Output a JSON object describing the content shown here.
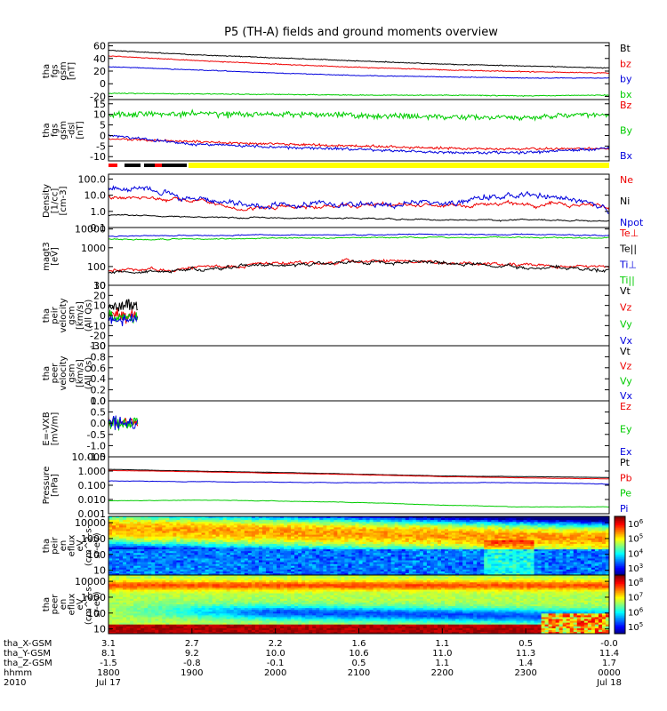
{
  "title": "P5 (TH-A) fields and ground moments overview",
  "chart_data": [
    {
      "id": "fgs_gsm",
      "type": "line",
      "ylabel": [
        "tha",
        "fgs",
        "gsm",
        "[nT]"
      ],
      "yticks": [
        60,
        40,
        20,
        0,
        -20
      ],
      "ylim": [
        -25,
        65
      ],
      "series": [
        {
          "name": "Bt",
          "color": "#000000",
          "noise": 0.6,
          "x": [
            0,
            1,
            2,
            3,
            4,
            5,
            6
          ],
          "y": [
            53,
            46,
            41,
            36,
            31,
            28,
            25
          ]
        },
        {
          "name": "bz",
          "color": "#ee0000",
          "noise": 0.6,
          "x": [
            0,
            1,
            2,
            3,
            4,
            5,
            6
          ],
          "y": [
            44,
            37,
            31,
            26,
            22,
            19,
            17
          ]
        },
        {
          "name": "by",
          "color": "#0000dd",
          "noise": 0.5,
          "x": [
            0,
            1,
            2,
            3,
            4,
            5,
            6
          ],
          "y": [
            27,
            22,
            17,
            13,
            11,
            9,
            9
          ]
        },
        {
          "name": "bx",
          "color": "#00cc00",
          "noise": 0.6,
          "x": [
            0,
            1,
            2,
            3,
            4,
            5,
            6
          ],
          "y": [
            -15,
            -16,
            -17,
            -18,
            -18,
            -19,
            -18
          ]
        }
      ]
    },
    {
      "id": "fgs_dsl",
      "type": "line",
      "ylabel": [
        "tha",
        "fgs",
        "gsm",
        "-dsl",
        "[nT]"
      ],
      "yticks": [
        15,
        10,
        5,
        0,
        -5,
        -10
      ],
      "ylim": [
        -12,
        17
      ],
      "series": [
        {
          "name": "Bz",
          "color": "#ee0000",
          "noise": 0.5,
          "x": [
            0,
            1,
            2,
            3,
            4,
            5,
            6
          ],
          "y": [
            -1.5,
            -3,
            -4,
            -5,
            -6,
            -6.5,
            -6
          ]
        },
        {
          "name": "By",
          "color": "#00cc00",
          "noise": 1.2,
          "x": [
            0,
            1,
            2,
            3,
            4,
            5,
            6
          ],
          "y": [
            10,
            10.5,
            10,
            9.5,
            9,
            8.5,
            10
          ]
        },
        {
          "name": "Bx",
          "color": "#0000dd",
          "noise": 0.6,
          "x": [
            0,
            1,
            2,
            3,
            4,
            5,
            6
          ],
          "y": [
            0,
            -4,
            -5.5,
            -6.5,
            -8,
            -8,
            -6
          ]
        }
      ]
    },
    {
      "id": "density",
      "type": "line",
      "log": true,
      "ylabel": [
        "Density",
        "[1/cc]",
        "[cm-3]"
      ],
      "yticks": [
        100,
        10,
        1,
        0.1
      ],
      "tick_labels": [
        "100.0",
        "10.0",
        "1.0",
        "0.1"
      ],
      "ylim": [
        0.1,
        200
      ],
      "series": [
        {
          "name": "Ne",
          "color": "#ee0000",
          "noise": 0.15,
          "x": [
            0,
            0.8,
            1.5,
            2.5,
            3.5,
            4.5,
            5.3,
            5.8,
            6
          ],
          "y": [
            8,
            6,
            1.5,
            2,
            2.5,
            2.5,
            3,
            2.5,
            1
          ]
        },
        {
          "name": "Ni",
          "color": "#000000",
          "noise": 0.05,
          "x": [
            0,
            1,
            2,
            3,
            4,
            5,
            6
          ],
          "y": [
            0.6,
            0.45,
            0.4,
            0.35,
            0.3,
            0.3,
            0.25
          ]
        },
        {
          "name": "Npot",
          "color": "#0000dd",
          "noise": 0.25,
          "x": [
            0,
            0.5,
            0.8,
            1.2,
            2,
            3,
            4,
            4.5,
            5,
            5.8,
            6
          ],
          "y": [
            30,
            20,
            10,
            4,
            2,
            3,
            4,
            6,
            9,
            2,
            0.6
          ]
        }
      ]
    },
    {
      "id": "temperature",
      "type": "line",
      "log": true,
      "ylabel": [
        "magt3",
        "[eV]"
      ],
      "yticks": [
        10000,
        1000,
        100,
        10
      ],
      "tick_labels": [
        "10000",
        "1000",
        "100",
        "10"
      ],
      "ylim": [
        10,
        12000
      ],
      "series": [
        {
          "name": "Te⊥",
          "color": "#ee0000",
          "noise": 0.12,
          "x": [
            0,
            1,
            2,
            3,
            4,
            5,
            6
          ],
          "y": [
            60,
            80,
            140,
            200,
            170,
            110,
            90
          ]
        },
        {
          "name": "Te||",
          "color": "#000000",
          "noise": 0.12,
          "x": [
            0,
            1,
            2,
            3,
            4,
            5,
            6
          ],
          "y": [
            50,
            70,
            120,
            170,
            150,
            80,
            70
          ]
        },
        {
          "name": "Ti⊥",
          "color": "#0000dd",
          "noise": 0.03,
          "x": [
            0,
            1,
            2,
            3,
            4,
            5,
            6
          ],
          "y": [
            4200,
            4500,
            4800,
            5000,
            5100,
            5000,
            4600
          ]
        },
        {
          "name": "Ti||",
          "color": "#00cc00",
          "noise": 0.04,
          "x": [
            0,
            1,
            2,
            3,
            4,
            5,
            6
          ],
          "y": [
            2800,
            3000,
            3200,
            3500,
            3600,
            3500,
            3400
          ]
        }
      ]
    },
    {
      "id": "peir_velocity",
      "type": "line",
      "ylabel": [
        "tha",
        "peir",
        "velocity",
        "gsm",
        "[km/s]",
        "(All Qs)"
      ],
      "yticks": [
        30,
        20,
        10,
        0,
        -10,
        -20,
        -30
      ],
      "ylim": [
        -30,
        30
      ],
      "series": [
        {
          "name": "Vt",
          "color": "#000000",
          "noise": 6,
          "x": [
            0,
            0.35
          ],
          "y": [
            10,
            10
          ]
        },
        {
          "name": "Vz",
          "color": "#ee0000",
          "noise": 5,
          "x": [
            0,
            0.35
          ],
          "y": [
            0,
            0
          ]
        },
        {
          "name": "Vy",
          "color": "#00cc00",
          "noise": 5,
          "x": [
            0,
            0.35
          ],
          "y": [
            -2,
            -2
          ]
        },
        {
          "name": "Vx",
          "color": "#0000dd",
          "noise": 5,
          "x": [
            0,
            0.35
          ],
          "y": [
            -4,
            -4
          ]
        }
      ]
    },
    {
      "id": "peer_velocity",
      "type": "line",
      "ylabel": [
        "tha",
        "peer",
        "velocity",
        "gsm",
        "[km/s]",
        "(All Qs)"
      ],
      "yticks": [
        1,
        0.8,
        0.6,
        0.4,
        0.2,
        0
      ],
      "tick_labels": [
        "1.0",
        "0.8",
        "0.6",
        "0.4",
        "0.2",
        "0.0"
      ],
      "ylim": [
        0,
        1
      ],
      "series": [
        {
          "name": "Vt",
          "color": "#000000"
        },
        {
          "name": "Vz",
          "color": "#ee0000"
        },
        {
          "name": "Vy",
          "color": "#00cc00"
        },
        {
          "name": "Vx",
          "color": "#0000dd"
        }
      ]
    },
    {
      "id": "efield",
      "type": "line",
      "ylabel": [
        "E=-VXB",
        "[mV/m]"
      ],
      "yticks": [
        1,
        0.5,
        0,
        -0.5,
        -1,
        -1.5
      ],
      "tick_labels": [
        "1.0",
        "0.5",
        "0.0",
        "-0.5",
        "-1.0",
        "-1.5"
      ],
      "ylim": [
        -1.5,
        1
      ],
      "series": [
        {
          "name": "Ez",
          "color": "#ee0000",
          "noise": 0.2,
          "x": [
            0,
            0.35
          ],
          "y": [
            0.05,
            0.05
          ]
        },
        {
          "name": "Ey",
          "color": "#00cc00",
          "noise": 0.3,
          "x": [
            0,
            0.35
          ],
          "y": [
            0,
            0
          ]
        },
        {
          "name": "Ex",
          "color": "#0000dd",
          "noise": 0.25,
          "x": [
            0,
            0.35
          ],
          "y": [
            0.1,
            0.1
          ]
        }
      ]
    },
    {
      "id": "pressure",
      "type": "line",
      "log": true,
      "ylabel": [
        "Pressure",
        "[nPa]"
      ],
      "yticks": [
        10,
        1,
        0.1,
        0.01,
        0.001
      ],
      "tick_labels": [
        "10.000",
        "1.000",
        "0.100",
        "0.010",
        "0.001"
      ],
      "ylim": [
        0.001,
        10
      ],
      "series": [
        {
          "name": "Pt",
          "color": "#000000",
          "noise": 0.01,
          "x": [
            0,
            1,
            2,
            3,
            4,
            5,
            6
          ],
          "y": [
            1.3,
            1.0,
            0.8,
            0.6,
            0.45,
            0.4,
            0.35
          ]
        },
        {
          "name": "Pb",
          "color": "#ee0000",
          "noise": 0.01,
          "x": [
            0,
            1,
            2,
            3,
            4,
            5,
            6
          ],
          "y": [
            1.1,
            0.9,
            0.7,
            0.55,
            0.4,
            0.33,
            0.28
          ]
        },
        {
          "name": "Pe",
          "color": "#00cc00",
          "noise": 0.02,
          "x": [
            0,
            1,
            2,
            3,
            4,
            5,
            6
          ],
          "y": [
            0.008,
            0.009,
            0.008,
            0.006,
            0.004,
            0.003,
            0.003
          ]
        },
        {
          "name": "Pi",
          "color": "#0000dd",
          "noise": 0.02,
          "x": [
            0,
            1,
            2,
            3,
            4,
            5,
            6
          ],
          "y": [
            0.2,
            0.18,
            0.16,
            0.15,
            0.15,
            0.15,
            0.12
          ]
        }
      ]
    },
    {
      "id": "peir_spectrogram",
      "type": "heatmap",
      "log": true,
      "ylabel": [
        "tha",
        "peir",
        "en",
        "eflux",
        "eV",
        "(cm^2-s-",
        "sr-eV)"
      ],
      "yticks": [
        10000,
        1000,
        100,
        10
      ],
      "tick_labels": [
        "10000",
        "1000",
        "100",
        "10"
      ],
      "ylim": [
        5,
        25000
      ],
      "colorbar": {
        "ticks": [
          "10^6",
          "10^5",
          "10^4",
          "10^3"
        ]
      }
    },
    {
      "id": "peer_spectrogram",
      "type": "heatmap",
      "log": true,
      "ylabel": [
        "tha",
        "peer",
        "en",
        "eflux",
        "eV",
        "(cm^2-s-",
        "sr-eV)"
      ],
      "yticks": [
        10000,
        1000,
        100,
        10
      ],
      "tick_labels": [
        "10000",
        "1000",
        "100",
        "10"
      ],
      "ylim": [
        5,
        25000
      ],
      "colorbar": {
        "ticks": [
          "10^8",
          "10^7",
          "10^6",
          "10^5"
        ]
      }
    }
  ],
  "time_axis": {
    "ticks": [
      0,
      1,
      2,
      3,
      4,
      5,
      6
    ],
    "hhmm": [
      "1800",
      "1900",
      "2000",
      "2100",
      "2200",
      "2300",
      "0000"
    ],
    "dates": [
      "Jul 17",
      "",
      "",
      "",
      "",
      "",
      "Jul 18"
    ],
    "rows": [
      {
        "label": "tha_X-GSM",
        "values": [
          "3.1",
          "2.7",
          "2.2",
          "1.6",
          "1.1",
          "0.5",
          "-0.0"
        ]
      },
      {
        "label": "tha_Y-GSM",
        "values": [
          "8.1",
          "9.2",
          "10.0",
          "10.6",
          "11.0",
          "11.3",
          "11.4"
        ]
      },
      {
        "label": "tha_Z-GSM",
        "values": [
          "-1.5",
          "-0.8",
          "-0.1",
          "0.5",
          "1.1",
          "1.4",
          "1.7"
        ]
      },
      {
        "label": "hhmm",
        "values": [
          "1800",
          "1900",
          "2000",
          "2100",
          "2200",
          "2300",
          "0000"
        ]
      },
      {
        "label": "2010",
        "values": [
          "Jul 17",
          "",
          "",
          "",
          "",
          "",
          "Jul 18"
        ]
      }
    ]
  }
}
